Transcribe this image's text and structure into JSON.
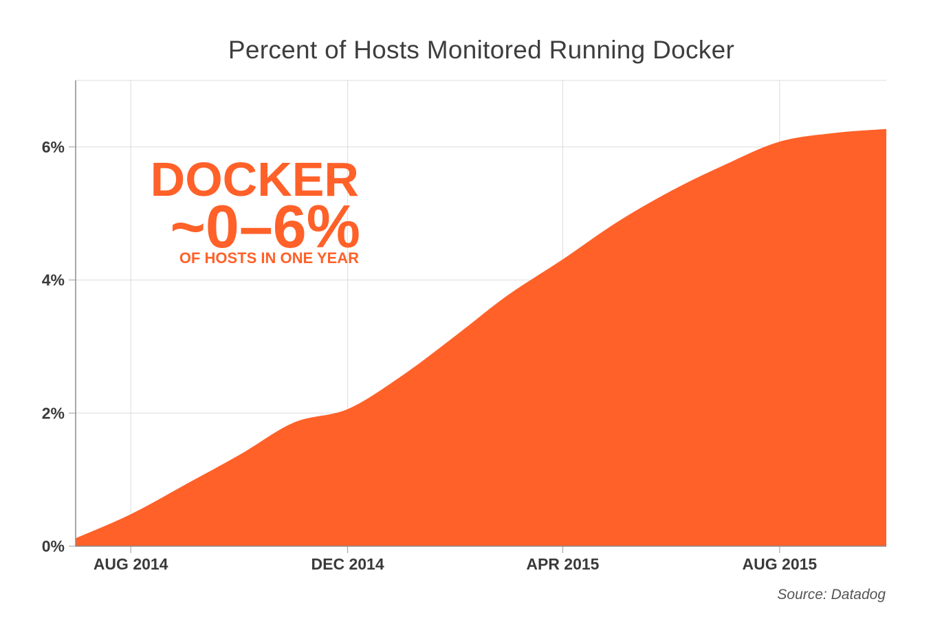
{
  "chart_data": {
    "type": "area",
    "title": "Percent of Hosts Monitored Running Docker",
    "xlabel": "",
    "ylabel": "",
    "x_ticks": [
      "AUG 2014",
      "DEC 2014",
      "APR 2015",
      "AUG 2015"
    ],
    "y_ticks": [
      {
        "value": 0,
        "label": "0%"
      },
      {
        "value": 2,
        "label": "2%"
      },
      {
        "value": 4,
        "label": "4%"
      },
      {
        "value": 6,
        "label": "6%"
      }
    ],
    "ylim": [
      0,
      7
    ],
    "xlim": [
      "2014-07-01",
      "2015-09-30"
    ],
    "grid": true,
    "color": "#ff6129",
    "series": [
      {
        "values": [
          {
            "x": "2014-07-01",
            "y": 0.12
          },
          {
            "x": "2014-08-01",
            "y": 0.48
          },
          {
            "x": "2014-09-01",
            "y": 0.93
          },
          {
            "x": "2014-10-01",
            "y": 1.37
          },
          {
            "x": "2014-11-01",
            "y": 1.86
          },
          {
            "x": "2014-12-01",
            "y": 2.06
          },
          {
            "x": "2015-01-01",
            "y": 2.57
          },
          {
            "x": "2015-02-01",
            "y": 3.19
          },
          {
            "x": "2015-03-01",
            "y": 3.77
          },
          {
            "x": "2015-04-01",
            "y": 4.31
          },
          {
            "x": "2015-05-01",
            "y": 4.86
          },
          {
            "x": "2015-06-01",
            "y": 5.34
          },
          {
            "x": "2015-07-01",
            "y": 5.73
          },
          {
            "x": "2015-08-01",
            "y": 6.08
          },
          {
            "x": "2015-09-01",
            "y": 6.21
          },
          {
            "x": "2015-09-30",
            "y": 6.27
          }
        ]
      }
    ],
    "annotations": [
      {
        "text": "DOCKER"
      },
      {
        "text": "~0–6%"
      },
      {
        "text": "OF HOSTS IN ONE YEAR"
      }
    ],
    "source": "Source: Datadog"
  }
}
